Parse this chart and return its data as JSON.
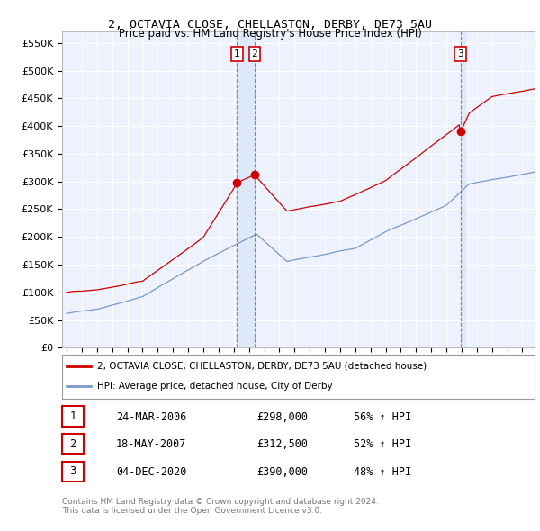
{
  "title": "2, OCTAVIA CLOSE, CHELLASTON, DERBY, DE73 5AU",
  "subtitle": "Price paid vs. HM Land Registry's House Price Index (HPI)",
  "red_label": "2, OCTAVIA CLOSE, CHELLASTON, DERBY, DE73 5AU (detached house)",
  "blue_label": "HPI: Average price, detached house, City of Derby",
  "footer1": "Contains HM Land Registry data © Crown copyright and database right 2024.",
  "footer2": "This data is licensed under the Open Government Licence v3.0.",
  "transactions": [
    {
      "num": "1",
      "date": "24-MAR-2006",
      "price": "£298,000",
      "change": "56% ↑ HPI"
    },
    {
      "num": "2",
      "date": "18-MAY-2007",
      "price": "£312,500",
      "change": "52% ↑ HPI"
    },
    {
      "num": "3",
      "date": "04-DEC-2020",
      "price": "£390,000",
      "change": "48% ↑ HPI"
    }
  ],
  "sale_dates_decimal": [
    2006.22,
    2007.37,
    2020.92
  ],
  "sale_prices": [
    298000,
    312500,
    390000
  ],
  "vline_dates": [
    2006.22,
    2007.37,
    2020.92
  ],
  "ylim": [
    0,
    570000
  ],
  "yticks": [
    0,
    50000,
    100000,
    150000,
    200000,
    250000,
    300000,
    350000,
    400000,
    450000,
    500000,
    550000
  ],
  "ytick_labels": [
    "£0",
    "£50K",
    "£100K",
    "£150K",
    "£200K",
    "£250K",
    "£300K",
    "£350K",
    "£400K",
    "£450K",
    "£500K",
    "£550K"
  ],
  "background_color": "#ffffff",
  "plot_bg_color": "#eef2ff",
  "grid_color": "#ffffff",
  "red_color": "#cc0000",
  "blue_color": "#7799cc",
  "vline_color": "#cc4444",
  "shade_color": "#dde8f8",
  "label_border_color": "#cc0000"
}
